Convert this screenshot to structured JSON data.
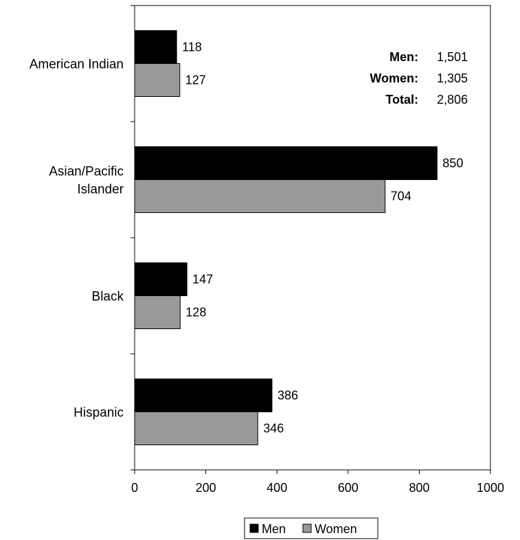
{
  "chart_data": {
    "type": "bar",
    "orientation": "horizontal",
    "categories": [
      "American Indian",
      "Asian/Pacific Islander",
      "Black",
      "Hispanic"
    ],
    "category_lines": [
      [
        "American Indian"
      ],
      [
        "Asian/Pacific",
        "Islander"
      ],
      [
        "Black"
      ],
      [
        "Hispanic"
      ]
    ],
    "series": [
      {
        "name": "Men",
        "values": [
          118,
          850,
          147,
          386
        ],
        "color": "#000000"
      },
      {
        "name": "Women",
        "values": [
          127,
          704,
          128,
          346
        ],
        "color": "#999999"
      }
    ],
    "xlim": [
      0,
      1000
    ],
    "xticks": [
      0,
      200,
      400,
      600,
      800,
      1000
    ],
    "xtick_labels": [
      "0",
      "200",
      "400",
      "600",
      "800",
      "1000"
    ],
    "grid": false,
    "legend_position": "bottom-center",
    "summary": [
      {
        "label": "Men:",
        "value": "1,501"
      },
      {
        "label": "Women:",
        "value": "1,305"
      },
      {
        "label": "Total:",
        "value": "2,806"
      }
    ]
  }
}
